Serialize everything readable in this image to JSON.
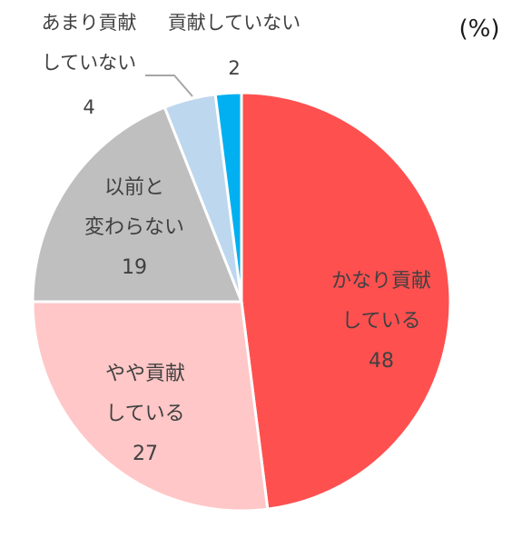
{
  "chart_data": {
    "type": "pie",
    "unit_label": "(%)",
    "slices": [
      {
        "lines": [
          "かなり貢献",
          "している"
        ],
        "value": 48,
        "color": "#FF5050"
      },
      {
        "lines": [
          "やや貢献",
          "している"
        ],
        "value": 27,
        "color": "#FFC7C7"
      },
      {
        "lines": [
          "以前と",
          "変わらない"
        ],
        "value": 19,
        "color": "#BFBFBF"
      },
      {
        "lines": [
          "あまり貢献",
          "していない"
        ],
        "value": 4,
        "color": "#BDD7EE"
      },
      {
        "lines": [
          "貢献していない"
        ],
        "value": 2,
        "color": "#00B0F0"
      }
    ]
  }
}
